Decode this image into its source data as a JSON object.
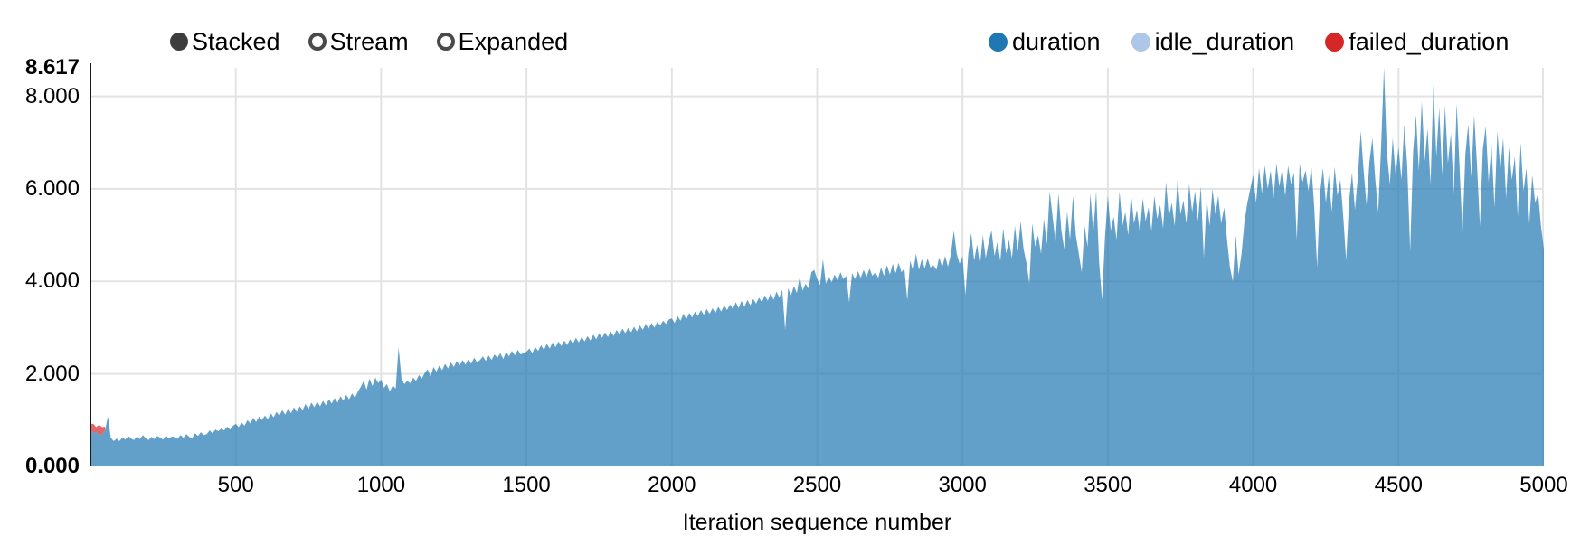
{
  "controls": {
    "items": [
      {
        "label": "Stacked",
        "selected": true
      },
      {
        "label": "Stream",
        "selected": false
      },
      {
        "label": "Expanded",
        "selected": false
      }
    ]
  },
  "legend": {
    "items": [
      {
        "label": "duration",
        "color": "#1f77b4"
      },
      {
        "label": "idle_duration",
        "color": "#aec7e8"
      },
      {
        "label": "failed_duration",
        "color": "#d62728"
      }
    ]
  },
  "colors": {
    "gridline": "#e3e3e3",
    "axis_line": "#191919",
    "radio_selected": "#3d3d3d",
    "radio_ring": "#494949"
  },
  "chart_data": {
    "type": "area",
    "stacked": true,
    "title": "",
    "xlabel": "Iteration sequence number",
    "ylabel": "",
    "grid": true,
    "legend_position": "top-right",
    "mode_options": [
      "Stacked",
      "Stream",
      "Expanded"
    ],
    "selected_mode": "Stacked",
    "x_domain": [
      0,
      5000
    ],
    "y_domain": [
      0,
      8.617
    ],
    "x_ticks": [
      500,
      1000,
      1500,
      2000,
      2500,
      3000,
      3500,
      4000,
      4500,
      5000
    ],
    "y_ticks": [
      {
        "value": 0,
        "label": "0.000",
        "bold": true
      },
      {
        "value": 2,
        "label": "2.000",
        "bold": false
      },
      {
        "value": 4,
        "label": "4.000",
        "bold": false
      },
      {
        "value": 6,
        "label": "6.000",
        "bold": false
      },
      {
        "value": 8,
        "label": "8.000",
        "bold": false
      },
      {
        "value": 8.617,
        "label": "8.617",
        "bold": true
      }
    ],
    "x_step": 10,
    "series": [
      {
        "name": "duration",
        "color": "#1f77b4",
        "values": [
          0.8,
          0.72,
          0.75,
          0.68,
          0.7,
          0.78,
          1.08,
          0.62,
          0.55,
          0.6,
          0.55,
          0.63,
          0.58,
          0.66,
          0.6,
          0.57,
          0.65,
          0.59,
          0.68,
          0.61,
          0.57,
          0.64,
          0.59,
          0.66,
          0.62,
          0.58,
          0.67,
          0.6,
          0.65,
          0.63,
          0.6,
          0.68,
          0.62,
          0.7,
          0.64,
          0.61,
          0.72,
          0.66,
          0.74,
          0.68,
          0.7,
          0.78,
          0.72,
          0.8,
          0.76,
          0.82,
          0.78,
          0.86,
          0.8,
          0.88,
          0.92,
          0.85,
          0.95,
          0.88,
          1.0,
          0.93,
          1.05,
          0.96,
          1.08,
          1.0,
          1.1,
          1.02,
          1.15,
          1.06,
          1.18,
          1.1,
          1.22,
          1.12,
          1.25,
          1.15,
          1.28,
          1.18,
          1.3,
          1.22,
          1.35,
          1.24,
          1.38,
          1.28,
          1.4,
          1.3,
          1.42,
          1.32,
          1.45,
          1.36,
          1.48,
          1.38,
          1.52,
          1.42,
          1.55,
          1.45,
          1.58,
          1.48,
          1.62,
          1.72,
          1.85,
          1.66,
          1.9,
          1.74,
          1.92,
          1.8,
          1.88,
          1.7,
          1.78,
          1.62,
          1.75,
          1.68,
          2.58,
          1.9,
          1.78,
          1.85,
          1.8,
          1.92,
          1.85,
          1.98,
          1.9,
          2.02,
          2.1,
          1.95,
          2.15,
          2.05,
          2.18,
          2.08,
          2.22,
          2.12,
          2.25,
          2.15,
          2.28,
          2.18,
          2.3,
          2.2,
          2.32,
          2.22,
          2.35,
          2.25,
          2.3,
          2.38,
          2.28,
          2.4,
          2.3,
          2.42,
          2.35,
          2.45,
          2.32,
          2.48,
          2.38,
          2.5,
          2.4,
          2.52,
          2.42,
          2.45,
          2.48,
          2.55,
          2.45,
          2.58,
          2.5,
          2.62,
          2.52,
          2.65,
          2.55,
          2.68,
          2.58,
          2.7,
          2.6,
          2.72,
          2.62,
          2.75,
          2.65,
          2.78,
          2.68,
          2.8,
          2.7,
          2.82,
          2.72,
          2.85,
          2.75,
          2.88,
          2.78,
          2.9,
          2.8,
          2.92,
          2.82,
          2.95,
          2.85,
          2.98,
          2.88,
          3.0,
          2.9,
          3.02,
          2.92,
          3.05,
          2.95,
          3.08,
          2.98,
          3.1,
          3.0,
          3.12,
          3.05,
          3.15,
          3.08,
          3.18,
          3.2,
          3.1,
          3.25,
          3.15,
          3.3,
          3.18,
          3.32,
          3.22,
          3.35,
          3.25,
          3.38,
          3.28,
          3.4,
          3.3,
          3.42,
          3.32,
          3.45,
          3.35,
          3.48,
          3.38,
          3.5,
          3.4,
          3.55,
          3.42,
          3.58,
          3.45,
          3.6,
          3.48,
          3.62,
          3.52,
          3.65,
          3.55,
          3.7,
          3.58,
          3.75,
          3.6,
          3.78,
          3.65,
          3.82,
          2.95,
          3.85,
          3.7,
          3.9,
          3.75,
          4.1,
          3.8,
          3.95,
          3.85,
          4.2,
          4.25,
          4.05,
          3.92,
          4.48,
          3.95,
          4.1,
          3.98,
          4.15,
          4.02,
          4.2,
          4.05,
          4.12,
          3.55,
          4.18,
          4.05,
          4.22,
          4.08,
          4.25,
          4.1,
          4.28,
          4.12,
          4.2,
          4.08,
          4.3,
          4.12,
          4.35,
          4.15,
          4.38,
          4.18,
          4.4,
          4.2,
          4.28,
          3.6,
          4.45,
          4.22,
          4.6,
          4.25,
          4.48,
          4.28,
          4.5,
          4.3,
          4.35,
          4.25,
          4.52,
          4.3,
          4.55,
          4.32,
          4.58,
          5.1,
          4.6,
          4.38,
          4.55,
          3.7,
          4.6,
          5.05,
          4.45,
          4.8,
          4.35,
          5.0,
          4.5,
          4.85,
          5.1,
          4.55,
          4.85,
          4.45,
          5.15,
          4.6,
          4.9,
          4.5,
          5.2,
          4.65,
          5.3,
          4.7,
          4.4,
          3.95,
          5.25,
          4.75,
          5.0,
          4.6,
          5.35,
          4.8,
          5.95,
          5.4,
          4.85,
          5.9,
          5.1,
          4.7,
          5.5,
          4.9,
          5.85,
          5.0,
          4.6,
          4.2,
          5.2,
          4.75,
          5.9,
          5.05,
          5.95,
          4.4,
          3.6,
          4.95,
          5.85,
          5.1,
          5.4,
          4.9,
          5.95,
          5.2,
          5.5,
          5.0,
          5.9,
          5.25,
          5.55,
          5.05,
          5.8,
          5.3,
          5.6,
          5.1,
          5.85,
          5.35,
          5.65,
          5.15,
          6.15,
          5.4,
          5.7,
          5.2,
          6.2,
          5.45,
          5.75,
          5.25,
          6.1,
          5.5,
          5.95,
          5.3,
          6.05,
          4.5,
          5.8,
          5.2,
          6.0,
          5.45,
          5.85,
          5.25,
          5.6,
          4.9,
          4.3,
          4.0,
          5.0,
          4.15,
          4.6,
          5.3,
          5.7,
          6.0,
          6.3,
          5.7,
          6.45,
          5.9,
          6.5,
          6.0,
          6.4,
          5.8,
          6.55,
          6.05,
          6.45,
          5.85,
          6.5,
          6.1,
          6.35,
          4.9,
          6.55,
          6.15,
          6.4,
          5.95,
          6.5,
          5.6,
          4.3,
          5.9,
          6.45,
          5.7,
          6.3,
          5.5,
          6.48,
          5.85,
          6.2,
          5.4,
          4.45,
          5.75,
          6.35,
          5.55,
          6.25,
          7.25,
          6.4,
          5.65,
          6.6,
          7.1,
          6.2,
          5.5,
          6.9,
          8.62,
          6.8,
          6.1,
          7.1,
          6.3,
          6.9,
          6.2,
          7.4,
          6.5,
          4.65,
          6.8,
          7.6,
          6.4,
          7.9,
          6.6,
          7.3,
          6.1,
          8.25,
          6.7,
          7.75,
          6.3,
          7.8,
          6.55,
          7.2,
          5.9,
          7.85,
          6.45,
          5.05,
          6.75,
          7.4,
          6.25,
          7.6,
          6.5,
          5.2,
          6.85,
          7.35,
          6.15,
          6.95,
          5.6,
          7.25,
          6.4,
          7.1,
          5.8,
          6.9,
          6.2,
          6.7,
          5.4,
          7.0,
          5.95,
          6.45,
          5.25,
          6.3,
          5.7,
          5.9,
          5.2,
          4.7
        ]
      },
      {
        "name": "idle_duration",
        "color": "#aec7e8",
        "values": []
      },
      {
        "name": "failed_duration",
        "color": "#d62728",
        "values": [
          0.12,
          0.2,
          0.1,
          0.22,
          0.15,
          0.08
        ]
      }
    ]
  }
}
